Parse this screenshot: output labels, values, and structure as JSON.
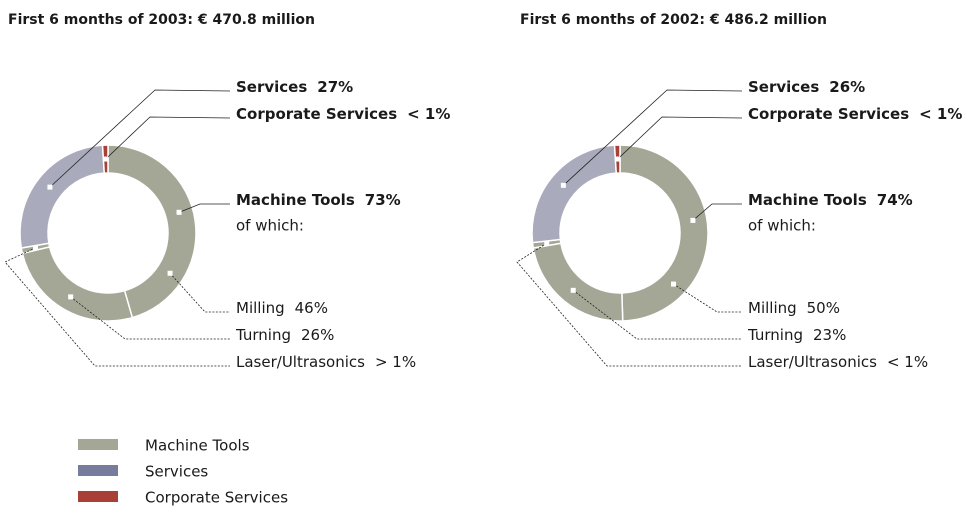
{
  "chart_data": [
    {
      "type": "pie",
      "title": "First 6 months of 2003: € 470.8 million",
      "categories": [
        "Milling",
        "Turning",
        "Laser/Ultrasonics",
        "Services",
        "Corporate Services"
      ],
      "values": [
        46,
        26,
        1,
        27,
        1
      ],
      "value_labels": [
        "46%",
        "26%",
        "> 1%",
        "27%",
        "< 1%"
      ],
      "colors": [
        "#a5a796",
        "#a5a796",
        "#a5a796",
        "#a9abbc",
        "#a84038"
      ],
      "group": {
        "name": "Machine Tools",
        "value": 73,
        "value_label": "73%",
        "note": "of which:"
      }
    },
    {
      "type": "pie",
      "title": "First 6 months of 2002: € 486.2 million",
      "categories": [
        "Milling",
        "Turning",
        "Laser/Ultrasonics",
        "Services",
        "Corporate Services"
      ],
      "values": [
        50,
        23,
        1,
        26,
        1
      ],
      "value_labels": [
        "50%",
        "23%",
        "< 1%",
        "26%",
        "< 1%"
      ],
      "colors": [
        "#a5a796",
        "#a5a796",
        "#a5a796",
        "#a9abbc",
        "#a84038"
      ],
      "group": {
        "name": "Machine Tools",
        "value": 74,
        "value_label": "74%",
        "note": "of which:"
      }
    }
  ],
  "legend": [
    {
      "name": "Machine Tools",
      "color": "#a5a796"
    },
    {
      "name": "Services",
      "color": "#787c9c"
    },
    {
      "name": "Corporate Services",
      "color": "#a84038"
    }
  ]
}
